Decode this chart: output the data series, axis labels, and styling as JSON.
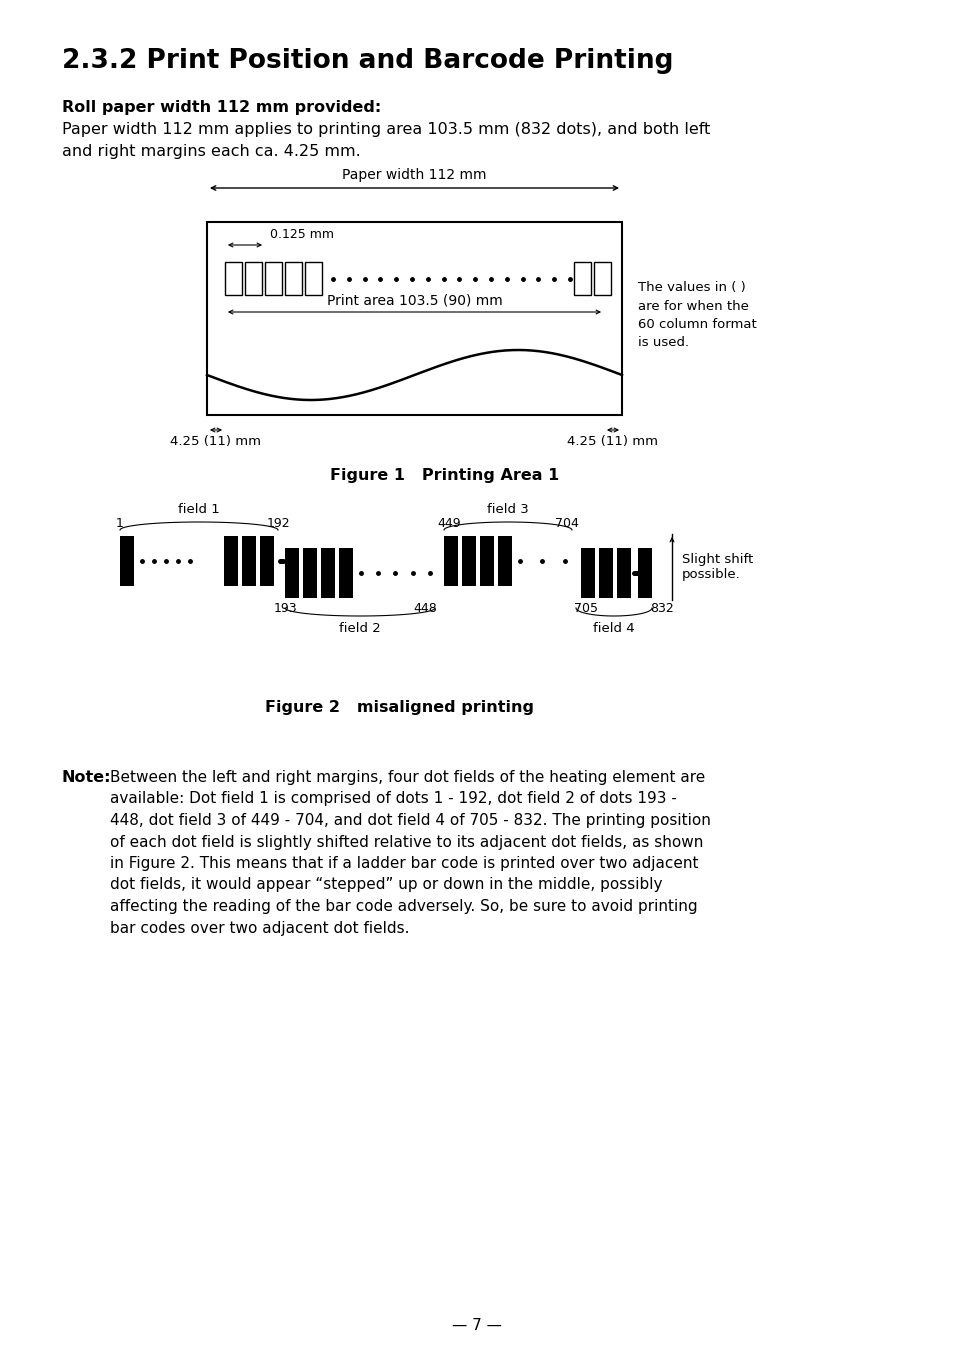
{
  "title": "2.3.2 Print Position and Barcode Printing",
  "subtitle_bold": "Roll paper width 112 mm provided:",
  "subtitle_text": "Paper width 112 mm applies to printing area 103.5 mm (832 dots), and both left\nand right margins each ca. 4.25 mm.",
  "fig1_caption": "Figure 1   Printing Area 1",
  "fig2_caption": "Figure 2   misaligned printing",
  "note_bold": "Note:",
  "side_note": "The values in ( )\nare for when the\n60 column format\nis used.",
  "slight_shift": "Slight shift\npossible.",
  "page_num": "— 7 —",
  "bg_color": "#ffffff",
  "fg_color": "#000000",
  "note_lines": [
    "Between the left and right margins, four dot fields of the heating element are",
    "available: Dot field 1 is comprised of dots 1 - 192, dot field 2 of dots 193 -",
    "448, dot field 3 of 449 - 704, and dot field 4 of 705 - 832. The printing position",
    "of each dot field is slightly shifted relative to its adjacent dot fields, as shown",
    "in Figure 2. This means that if a ladder bar code is printed over two adjacent",
    "dot fields, it would appear “stepped” up or down in the middle, possibly",
    "affecting the reading of the bar code adversely. So, be sure to avoid printing",
    "bar codes over two adjacent dot fields."
  ]
}
